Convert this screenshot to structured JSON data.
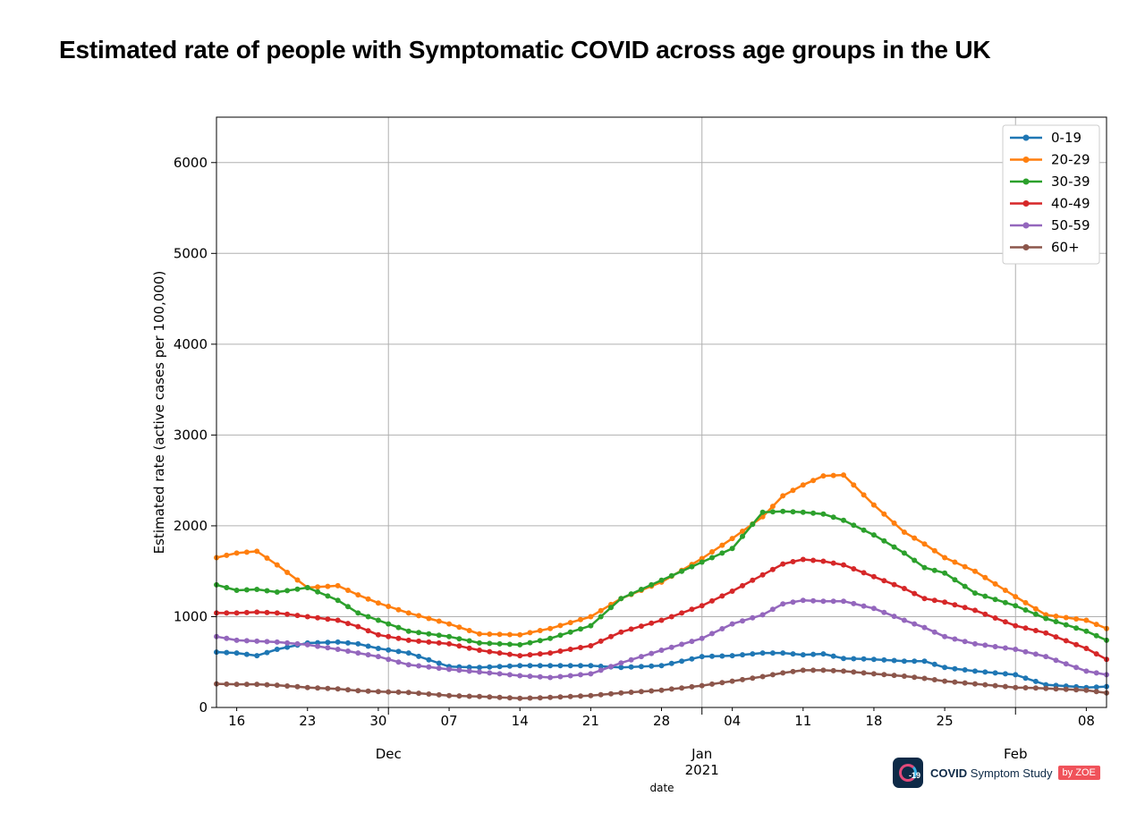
{
  "title": "Estimated rate of people with Symptomatic COVID across age groups in the UK",
  "brand": {
    "logo_text": "-19",
    "name_bold": "COVID",
    "name_rest": " Symptom Study",
    "by_label": "by ZOE"
  },
  "chart_data": {
    "type": "line",
    "title": "Estimated rate of people with Symptomatic COVID across age groups in the UK",
    "xlabel": "date",
    "ylabel": "Estimated rate (active cases per 100,000)",
    "xlim": [
      "2020-11-14",
      "2021-02-10"
    ],
    "ylim": [
      0,
      6500
    ],
    "yticks": [
      0,
      1000,
      2000,
      3000,
      4000,
      5000,
      6000
    ],
    "grid": true,
    "legend_position": "top-right",
    "x_tick_labels": [
      {
        "date": "2020-11-16",
        "label": "16"
      },
      {
        "date": "2020-11-23",
        "label": "23"
      },
      {
        "date": "2020-11-30",
        "label": "30"
      },
      {
        "date": "2020-12-07",
        "label": "07"
      },
      {
        "date": "2020-12-14",
        "label": "14"
      },
      {
        "date": "2020-12-21",
        "label": "21"
      },
      {
        "date": "2020-12-28",
        "label": "28"
      },
      {
        "date": "2021-01-04",
        "label": "04"
      },
      {
        "date": "2021-01-11",
        "label": "11"
      },
      {
        "date": "2021-01-18",
        "label": "18"
      },
      {
        "date": "2021-01-25",
        "label": "25"
      },
      {
        "date": "2021-02-08",
        "label": "08"
      }
    ],
    "x_major_labels": [
      {
        "date": "2020-12-01",
        "label": "Dec"
      },
      {
        "date": "2021-01-01",
        "label": "Jan\n2021"
      },
      {
        "date": "2021-02-01",
        "label": "Feb"
      }
    ],
    "x_anchor_dates": [
      "2020-11-14",
      "2020-11-16",
      "2020-11-18",
      "2020-11-20",
      "2020-11-23",
      "2020-11-26",
      "2020-11-28",
      "2020-11-30",
      "2020-12-03",
      "2020-12-07",
      "2020-12-10",
      "2020-12-14",
      "2020-12-17",
      "2020-12-21",
      "2020-12-24",
      "2020-12-28",
      "2021-01-01",
      "2021-01-04",
      "2021-01-07",
      "2021-01-09",
      "2021-01-11",
      "2021-01-13",
      "2021-01-15",
      "2021-01-18",
      "2021-01-21",
      "2021-01-23",
      "2021-01-25",
      "2021-01-28",
      "2021-02-01",
      "2021-02-04",
      "2021-02-08",
      "2021-02-10"
    ],
    "series": [
      {
        "name": "0-19",
        "color": "#1f77b4",
        "values": [
          610,
          600,
          570,
          640,
          710,
          720,
          700,
          650,
          600,
          450,
          440,
          460,
          460,
          460,
          440,
          460,
          560,
          570,
          600,
          600,
          580,
          590,
          540,
          530,
          510,
          510,
          440,
          400,
          360,
          250,
          220,
          230
        ]
      },
      {
        "name": "20-29",
        "color": "#ff7f0e",
        "values": [
          1650,
          1700,
          1720,
          1570,
          1320,
          1340,
          1240,
          1150,
          1040,
          920,
          810,
          800,
          870,
          1000,
          1200,
          1380,
          1640,
          1860,
          2100,
          2330,
          2450,
          2550,
          2560,
          2230,
          1930,
          1800,
          1650,
          1500,
          1220,
          1020,
          960,
          870
        ]
      },
      {
        "name": "30-39",
        "color": "#2ca02c",
        "values": [
          1350,
          1290,
          1300,
          1270,
          1320,
          1180,
          1040,
          960,
          840,
          780,
          710,
          690,
          760,
          900,
          1200,
          1400,
          1600,
          1750,
          2150,
          2160,
          2150,
          2130,
          2060,
          1900,
          1700,
          1540,
          1480,
          1260,
          1120,
          980,
          840,
          740
        ]
      },
      {
        "name": "40-49",
        "color": "#d62728",
        "values": [
          1040,
          1040,
          1050,
          1040,
          1000,
          960,
          890,
          800,
          740,
          700,
          630,
          570,
          600,
          680,
          830,
          960,
          1120,
          1280,
          1460,
          1580,
          1630,
          1610,
          1570,
          1440,
          1310,
          1200,
          1160,
          1070,
          900,
          820,
          650,
          530
        ]
      },
      {
        "name": "50-59",
        "color": "#9467bd",
        "values": [
          780,
          740,
          730,
          720,
          690,
          640,
          600,
          560,
          470,
          420,
          390,
          350,
          330,
          370,
          490,
          630,
          760,
          920,
          1020,
          1140,
          1180,
          1170,
          1170,
          1090,
          960,
          880,
          780,
          700,
          640,
          560,
          400,
          360
        ]
      },
      {
        "name": "60+",
        "color": "#8c564b",
        "values": [
          260,
          255,
          255,
          245,
          220,
          205,
          185,
          175,
          165,
          130,
          120,
          100,
          110,
          130,
          160,
          190,
          240,
          290,
          340,
          380,
          410,
          410,
          400,
          370,
          345,
          320,
          290,
          260,
          220,
          210,
          190,
          160
        ]
      }
    ]
  }
}
